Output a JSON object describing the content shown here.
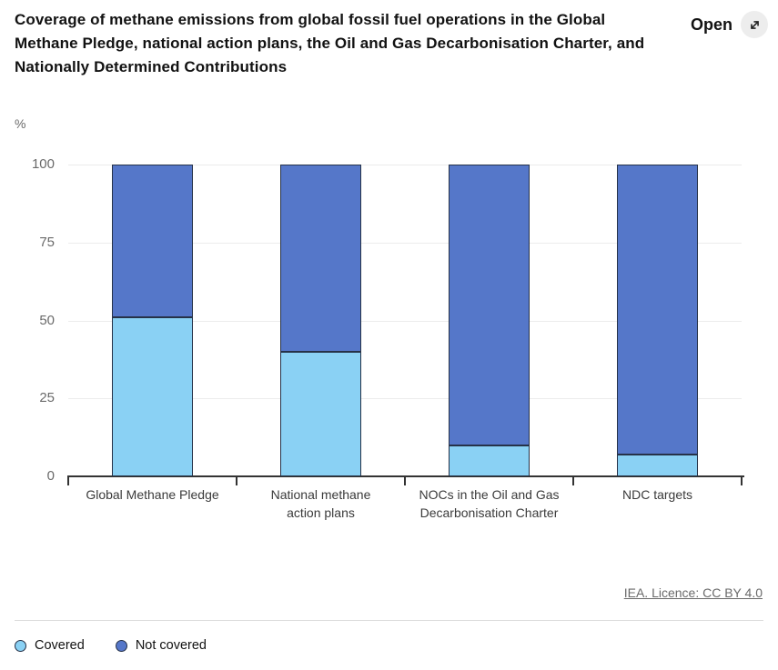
{
  "header": {
    "title": "Coverage of methane emissions from global fossil fuel operations in the Global Methane Pledge, national action plans, the Oil and Gas Decarbonisation Charter, and Nationally Determined Contributions",
    "open_label": "Open",
    "open_icon": "expand-diagonal-arrow-icon"
  },
  "footer": {
    "licence_link": "IEA. Licence: CC BY 4.0"
  },
  "legend": [
    {
      "label": "Covered",
      "color": "#8AD1F4"
    },
    {
      "label": "Not covered",
      "color": "#5577C9"
    }
  ],
  "colors": {
    "covered": "#8AD1F4",
    "not_covered": "#5577C9",
    "bar_border": "#263248",
    "gridline": "#ececec",
    "axis": "#333333"
  },
  "chart_data": {
    "type": "bar",
    "stacked": true,
    "title": "Coverage of methane emissions from global fossil fuel operations in the Global Methane Pledge, national action plans, the Oil and Gas Decarbonisation Charter, and Nationally Determined Contributions",
    "unit_label": "%",
    "xlabel": "",
    "ylabel": "%",
    "ylim": [
      0,
      100
    ],
    "yticks": [
      0,
      25,
      50,
      75,
      100
    ],
    "grid": "horizontal",
    "legend_position": "bottom",
    "categories": [
      "Global Methane Pledge",
      "National methane action plans",
      "NOCs in the Oil and Gas Decarbonisation Charter",
      "NDC targets"
    ],
    "category_lines": [
      [
        "Global Methane Pledge"
      ],
      [
        "National methane",
        "action plans"
      ],
      [
        "NOCs in the Oil and Gas",
        "Decarbonisation Charter"
      ],
      [
        "NDC targets"
      ]
    ],
    "series": [
      {
        "name": "Covered",
        "color": "#8AD1F4",
        "values": [
          51,
          40,
          10,
          7
        ]
      },
      {
        "name": "Not covered",
        "color": "#5577C9",
        "values": [
          49,
          60,
          90,
          93
        ]
      }
    ]
  }
}
